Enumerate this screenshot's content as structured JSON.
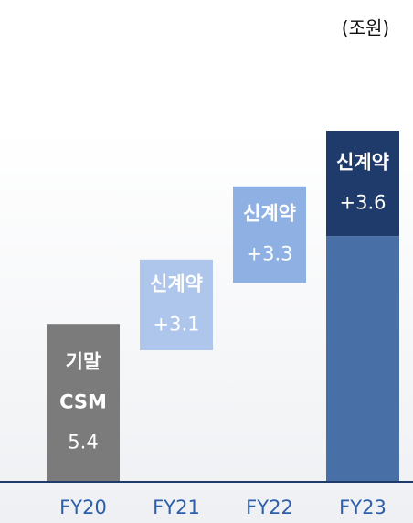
{
  "chart_data": {
    "type": "waterfall",
    "unit": "(조원)",
    "categories": [
      "FY20",
      "FY21",
      "FY22",
      "FY23"
    ],
    "values": [
      5.4,
      3.1,
      3.3,
      3.6
    ],
    "value_labels": [
      "5.4",
      "+3.1",
      "+3.3",
      "+3.6"
    ],
    "bases": [
      0,
      4.5,
      6.8,
      8.4
    ],
    "bar_texts": [
      [
        "기말",
        "CSM"
      ],
      [
        "신계약"
      ],
      [
        "신계약"
      ],
      [
        "신계약"
      ]
    ],
    "colors": [
      "#7b7b7b",
      "#aec6ec",
      "#8eb0e2",
      "#1f3b6c"
    ],
    "base_color": "#4870a6",
    "ylim": [
      0,
      16
    ]
  }
}
